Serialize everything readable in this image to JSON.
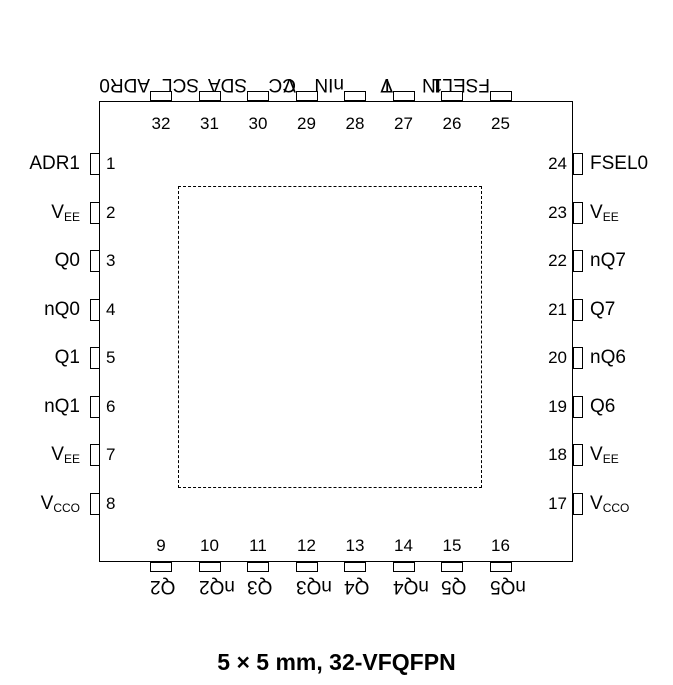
{
  "caption": "5 × 5 mm, 32-VFQFPN",
  "pins": [
    {
      "num": "1",
      "label": "ADR1",
      "sub": ""
    },
    {
      "num": "2",
      "label": "V",
      "sub": "EE"
    },
    {
      "num": "3",
      "label": "Q0",
      "sub": ""
    },
    {
      "num": "4",
      "label": "nQ0",
      "sub": ""
    },
    {
      "num": "5",
      "label": "Q1",
      "sub": ""
    },
    {
      "num": "6",
      "label": "nQ1",
      "sub": ""
    },
    {
      "num": "7",
      "label": "V",
      "sub": "EE"
    },
    {
      "num": "8",
      "label": "V",
      "sub": "CCO"
    },
    {
      "num": "9",
      "label": "Q2",
      "sub": ""
    },
    {
      "num": "10",
      "label": "nQ2",
      "sub": ""
    },
    {
      "num": "11",
      "label": "Q3",
      "sub": ""
    },
    {
      "num": "12",
      "label": "nQ3",
      "sub": ""
    },
    {
      "num": "13",
      "label": "Q4",
      "sub": ""
    },
    {
      "num": "14",
      "label": "nQ4",
      "sub": ""
    },
    {
      "num": "15",
      "label": "Q5",
      "sub": ""
    },
    {
      "num": "16",
      "label": "nQ5",
      "sub": ""
    },
    {
      "num": "17",
      "label": "V",
      "sub": "CCO"
    },
    {
      "num": "18",
      "label": "V",
      "sub": "EE"
    },
    {
      "num": "19",
      "label": "Q6",
      "sub": ""
    },
    {
      "num": "20",
      "label": "nQ6",
      "sub": ""
    },
    {
      "num": "21",
      "label": "Q7",
      "sub": ""
    },
    {
      "num": "22",
      "label": "nQ7",
      "sub": ""
    },
    {
      "num": "23",
      "label": "V",
      "sub": "EE"
    },
    {
      "num": "24",
      "label": "FSEL0",
      "sub": ""
    },
    {
      "num": "25",
      "label": "FSEL1",
      "sub": ""
    },
    {
      "num": "26",
      "label": "IN",
      "sub": ""
    },
    {
      "num": "27",
      "label": "V",
      "sub": "T"
    },
    {
      "num": "28",
      "label": "nIN",
      "sub": ""
    },
    {
      "num": "29",
      "label": "V",
      "sub": "CC"
    },
    {
      "num": "30",
      "label": "SDA",
      "sub": ""
    },
    {
      "num": "31",
      "label": "SCL",
      "sub": ""
    },
    {
      "num": "32",
      "label": "ADR0",
      "sub": ""
    }
  ]
}
